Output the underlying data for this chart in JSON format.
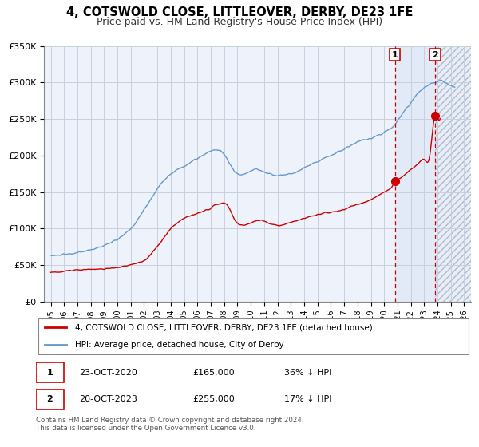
{
  "title": "4, COTSWOLD CLOSE, LITTLEOVER, DERBY, DE23 1FE",
  "subtitle": "Price paid vs. HM Land Registry's House Price Index (HPI)",
  "ylim": [
    0,
    350000
  ],
  "xlim": [
    1994.5,
    2026.5
  ],
  "yticks": [
    0,
    50000,
    100000,
    150000,
    200000,
    250000,
    300000,
    350000
  ],
  "ytick_labels": [
    "£0",
    "£50K",
    "£100K",
    "£150K",
    "£200K",
    "£250K",
    "£300K",
    "£350K"
  ],
  "xticks": [
    1995,
    1996,
    1997,
    1998,
    1999,
    2000,
    2001,
    2002,
    2003,
    2004,
    2005,
    2006,
    2007,
    2008,
    2009,
    2010,
    2011,
    2012,
    2013,
    2014,
    2015,
    2016,
    2017,
    2018,
    2019,
    2020,
    2021,
    2022,
    2023,
    2024,
    2025,
    2026
  ],
  "house_color": "#cc0000",
  "hpi_color": "#6699cc",
  "bg_color": "#eef2fa",
  "grid_color": "#c8d0e0",
  "point1_x": 2020.81,
  "point1_y": 165000,
  "point2_x": 2023.81,
  "point2_y": 255000,
  "vline_color": "#cc0000",
  "shade_color": "#dde8f8",
  "legend_line1": "4, COTSWOLD CLOSE, LITTLEOVER, DERBY, DE23 1FE (detached house)",
  "legend_line2": "HPI: Average price, detached house, City of Derby",
  "table_row1_date": "23-OCT-2020",
  "table_row1_price": "£165,000",
  "table_row1_hpi": "36% ↓ HPI",
  "table_row2_date": "20-OCT-2023",
  "table_row2_price": "£255,000",
  "table_row2_hpi": "17% ↓ HPI",
  "footer": "Contains HM Land Registry data © Crown copyright and database right 2024.\nThis data is licensed under the Open Government Licence v3.0."
}
